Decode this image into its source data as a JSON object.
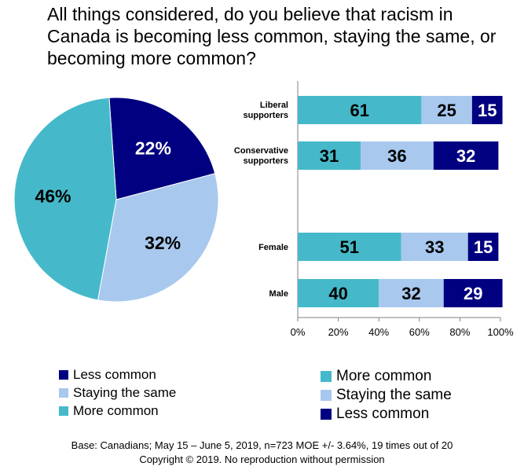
{
  "title": "All things considered, do you believe that racism in Canada is becoming less common, staying the same, or becoming more common?",
  "colors": {
    "more": "#45B9C9",
    "same": "#A8C8EE",
    "less": "#000080"
  },
  "chart_data": [
    {
      "type": "pie",
      "slices": [
        {
          "label": "Less common",
          "value": 22,
          "text": "22%"
        },
        {
          "label": "Staying the same",
          "value": 32,
          "text": "32%"
        },
        {
          "label": "More common",
          "value": 46,
          "text": "46%"
        }
      ],
      "legend": [
        "Less common",
        "Staying the same",
        "More common"
      ]
    },
    {
      "type": "bar",
      "orientation": "horizontal-stacked",
      "categories": [
        "Liberal supporters",
        "Conservative supporters",
        "Female",
        "Male"
      ],
      "series": [
        {
          "name": "More common",
          "values": [
            61,
            31,
            51,
            40
          ]
        },
        {
          "name": "Staying the same",
          "values": [
            25,
            36,
            33,
            32
          ]
        },
        {
          "name": "Less common",
          "values": [
            15,
            32,
            15,
            29
          ]
        }
      ],
      "xlim": [
        0,
        100
      ],
      "xticks": [
        "0%",
        "20%",
        "40%",
        "60%",
        "80%",
        "100%"
      ],
      "legend": [
        "More common",
        "Staying the same",
        "Less common"
      ]
    }
  ],
  "footer": {
    "base": "Base: Canadians; May 15 – June 5, 2019, n=723  MOE +/- 3.64%, 19 times out of 20",
    "copyright": "Copyright © 2019. No reproduction without permission"
  }
}
